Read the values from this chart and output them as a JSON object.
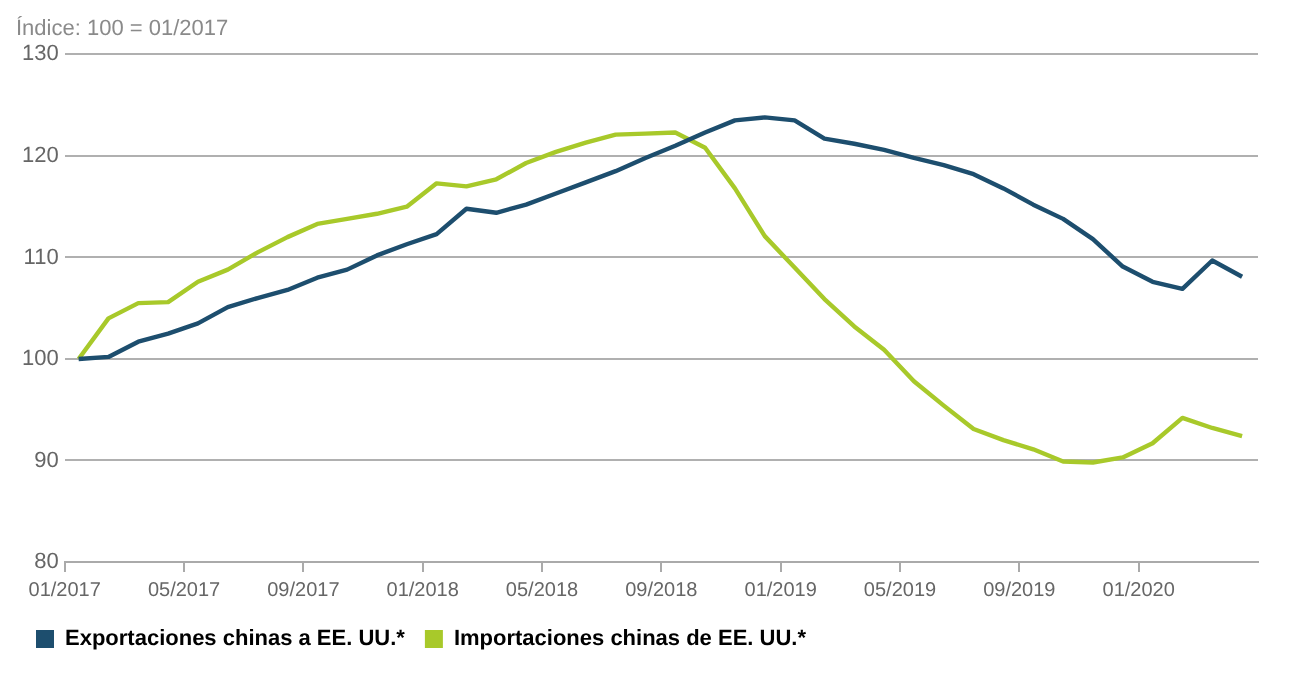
{
  "chart_data": {
    "type": "line",
    "ylabel": "Índice: 100 = 01/2017",
    "x": [
      "2017-01-15",
      "2017-02-15",
      "2017-03-15",
      "2017-04-15",
      "2017-05-15",
      "2017-06-15",
      "2017-07-15",
      "2017-08-15",
      "2017-09-15",
      "2017-10-15",
      "2017-11-15",
      "2017-12-15",
      "2018-01-15",
      "2018-02-15",
      "2018-03-15",
      "2018-04-15",
      "2018-05-15",
      "2018-06-15",
      "2018-07-15",
      "2018-08-15",
      "2018-09-15",
      "2018-10-15",
      "2018-11-15",
      "2018-12-15",
      "2019-01-15",
      "2019-02-15",
      "2019-03-15",
      "2019-04-15",
      "2019-05-15",
      "2019-06-15",
      "2019-07-15",
      "2019-08-15",
      "2019-09-15",
      "2019-10-15",
      "2019-11-15",
      "2019-12-15",
      "2020-01-15",
      "2020-02-15",
      "2020-03-15",
      "2020-04-15"
    ],
    "series": [
      {
        "name": "Exportaciones chinas a EE. UU.*",
        "color": "#1d4e6e",
        "values": [
          100,
          100.2,
          101.7,
          102.5,
          103.5,
          105.1,
          106,
          106.8,
          108,
          108.8,
          110.2,
          111.3,
          112.3,
          114.8,
          114.4,
          115.2,
          116.3,
          117.4,
          118.5,
          119.8,
          121,
          122.3,
          123.5,
          123.8,
          123.5,
          121.7,
          121.2,
          120.6,
          119.8,
          119.1,
          118.2,
          116.8,
          115.2,
          113.8,
          111.8,
          109.1,
          107.6,
          106.9,
          109.7,
          108.1
        ]
      },
      {
        "name": "Importaciones chinas de EE. UU.*",
        "color": "#a8c92a",
        "values": [
          100,
          104,
          105.5,
          105.6,
          107.6,
          108.8,
          110.5,
          112,
          113.3,
          113.8,
          114.3,
          115,
          117.3,
          117,
          117.7,
          119.3,
          120.4,
          121.3,
          122.1,
          122.2,
          122.3,
          120.8,
          116.8,
          112.1,
          109,
          105.9,
          103.2,
          100.9,
          97.8,
          95.4,
          93.1,
          92,
          91.1,
          89.9,
          89.8,
          90.3,
          91.7,
          94.2,
          93.2,
          92.4
        ]
      }
    ],
    "xlim": [
      "2017-01",
      "2020-05"
    ],
    "xticks": [
      {
        "value": "2017-01",
        "label": "01/2017"
      },
      {
        "value": "2017-05",
        "label": "05/2017"
      },
      {
        "value": "2017-09",
        "label": "09/2017"
      },
      {
        "value": "2018-01",
        "label": "01/2018"
      },
      {
        "value": "2018-05",
        "label": "05/2018"
      },
      {
        "value": "2018-09",
        "label": "09/2018"
      },
      {
        "value": "2019-01",
        "label": "01/2019"
      },
      {
        "value": "2019-05",
        "label": "05/2019"
      },
      {
        "value": "2019-09",
        "label": "09/2019"
      },
      {
        "value": "2020-01",
        "label": "01/2020"
      }
    ],
    "ylim": [
      80,
      130
    ],
    "yticks": [
      80,
      90,
      100,
      110,
      120,
      130
    ],
    "grid": "y",
    "legend": "bottom left",
    "marker": "none",
    "line_style": "solid"
  }
}
